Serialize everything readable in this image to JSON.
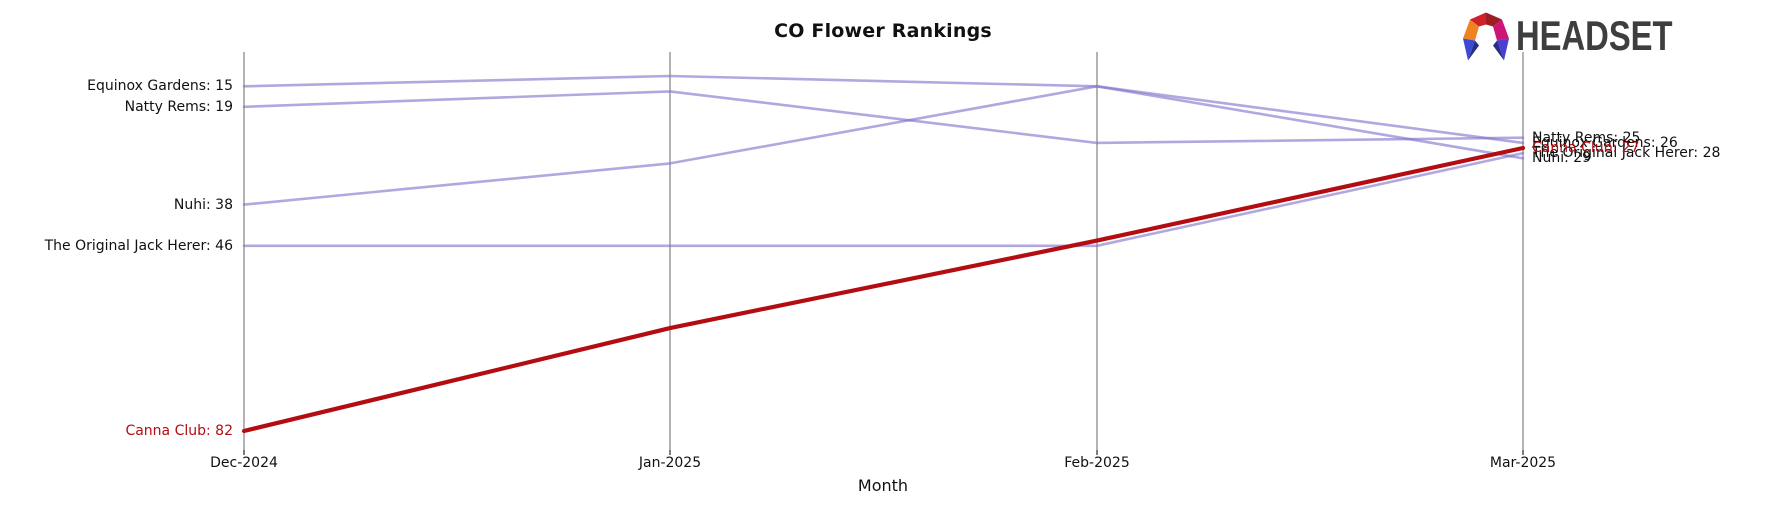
{
  "logo": {
    "text": "HEADSET"
  },
  "chart_data": {
    "type": "line",
    "subtype": "bump-ranking-chart",
    "title": "CO Flower Rankings",
    "xlabel": "Month",
    "categories": [
      "Dec-2024",
      "Jan-2025",
      "Feb-2025",
      "Mar-2025"
    ],
    "grid": "vertical gridline at each month, no horizontal axis ticks",
    "legend_position": "none (direct labels at both line ends)",
    "value_axis_hidden": true,
    "rank_range_visible": [
      9,
      86
    ],
    "line_colors": {
      "default": "#8172cc",
      "highlight": "#b30d12"
    },
    "series": [
      {
        "name": "Equinox Gardens",
        "values": [
          15,
          13,
          15,
          26
        ],
        "color": "#8172cc",
        "highlight": false,
        "start_label": "Equinox Gardens: 15",
        "end_label": "Equinox Gardens: 26"
      },
      {
        "name": "Natty Rems",
        "values": [
          19,
          16,
          26,
          25
        ],
        "color": "#8172cc",
        "highlight": false,
        "start_label": "Natty Rems: 19",
        "end_label": "Natty Rems: 25"
      },
      {
        "name": "Nuhi",
        "values": [
          38,
          30,
          15,
          29
        ],
        "color": "#8172cc",
        "highlight": false,
        "start_label": "Nuhi: 38",
        "end_label": "Nuhi: 29"
      },
      {
        "name": "The Original Jack Herer",
        "values": [
          46,
          46,
          46,
          28
        ],
        "color": "#8172cc",
        "highlight": false,
        "start_label": "The Original Jack Herer: 46",
        "end_label": "The Original Jack Herer: 28"
      },
      {
        "name": "Canna Club",
        "values": [
          82,
          62,
          45,
          27
        ],
        "color": "#b30d12",
        "highlight": true,
        "start_label": "Canna Club: 82",
        "end_label": "Canna Club: 27"
      }
    ]
  }
}
